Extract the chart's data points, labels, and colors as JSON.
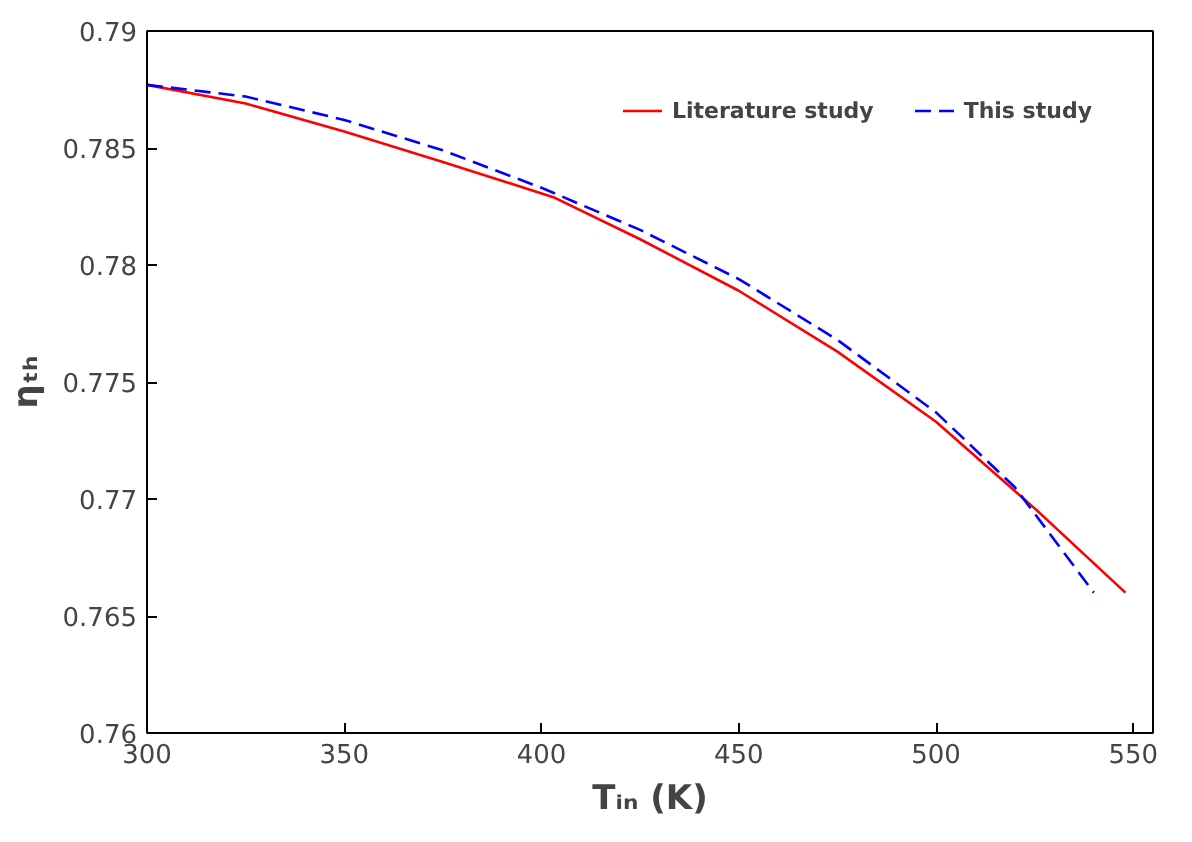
{
  "chart_data": {
    "type": "line",
    "xlabel": "Tᵢₙ (K)",
    "ylabel": "ηₜₕ",
    "xlim": [
      300,
      555
    ],
    "ylim": [
      0.76,
      0.79
    ],
    "xticks": [
      300,
      350,
      400,
      450,
      500,
      550
    ],
    "yticks": [
      0.76,
      0.765,
      0.77,
      0.775,
      0.78,
      0.785,
      0.79
    ],
    "grid": false,
    "legend": "top right",
    "series": [
      {
        "name": "Literature study",
        "color": "#ff0000",
        "line_style": "solid",
        "x": [
          300,
          325,
          350,
          375,
          403,
          425,
          450,
          475,
          500,
          525,
          548
        ],
        "values": [
          0.7877,
          0.7869,
          0.7857,
          0.7844,
          0.7829,
          0.7811,
          0.7789,
          0.7763,
          0.7733,
          0.7696,
          0.766
        ]
      },
      {
        "name": "This study",
        "color": "#0000ff",
        "line_style": "dashed",
        "x": [
          300,
          325,
          350,
          375,
          400,
          425,
          450,
          475,
          500,
          520,
          540
        ],
        "values": [
          0.7877,
          0.7872,
          0.7862,
          0.7849,
          0.7833,
          0.7815,
          0.7794,
          0.7768,
          0.7737,
          0.7705,
          0.766
        ]
      }
    ]
  }
}
